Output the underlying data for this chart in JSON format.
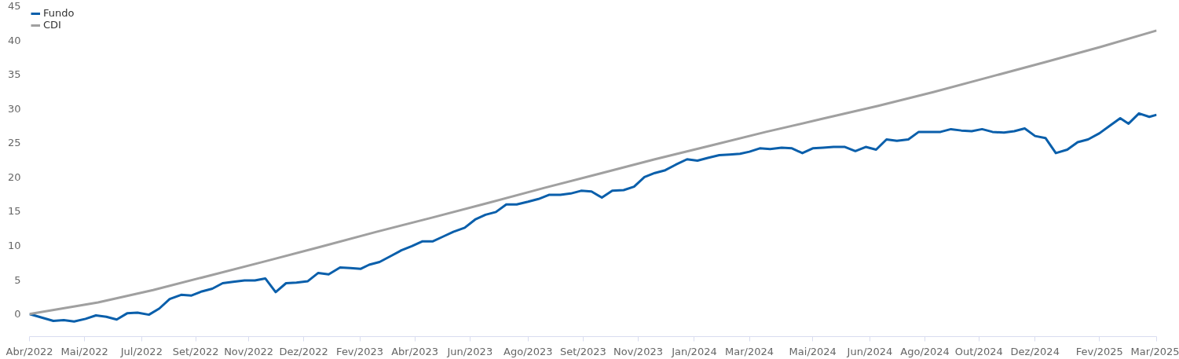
{
  "chart_data": {
    "type": "line",
    "xlim": [
      "2022-04-08",
      "2025-03-28"
    ],
    "ylim": [
      -3.3,
      45
    ],
    "yticks": [
      0,
      5,
      10,
      15,
      20,
      25,
      30,
      35,
      40,
      45
    ],
    "xticks": [
      {
        "value": "2022-04-08",
        "label": "Abr/2022"
      },
      {
        "value": "2022-05-31",
        "label": "Mai/2022"
      },
      {
        "value": "2022-07-25",
        "label": "Jul/2022"
      },
      {
        "value": "2022-09-15",
        "label": "Set/2022"
      },
      {
        "value": "2022-11-05",
        "label": "Nov/2022"
      },
      {
        "value": "2022-12-28",
        "label": "Dez/2022"
      },
      {
        "value": "2023-02-20",
        "label": "Fev/2023"
      },
      {
        "value": "2023-04-14",
        "label": "Abr/2023"
      },
      {
        "value": "2023-06-06",
        "label": "Jun/2023"
      },
      {
        "value": "2023-08-01",
        "label": "Ago/2023"
      },
      {
        "value": "2023-09-23",
        "label": "Set/2023"
      },
      {
        "value": "2023-11-15",
        "label": "Nov/2023"
      },
      {
        "value": "2024-01-08",
        "label": "Jan/2024"
      },
      {
        "value": "2024-03-01",
        "label": "Mar/2024"
      },
      {
        "value": "2024-05-01",
        "label": "Mai/2024"
      },
      {
        "value": "2024-06-25",
        "label": "Jun/2024"
      },
      {
        "value": "2024-08-17",
        "label": "Ago/2024"
      },
      {
        "value": "2024-10-08",
        "label": "Out/2024"
      },
      {
        "value": "2024-12-01",
        "label": "Dez/2024"
      },
      {
        "value": "2025-02-01",
        "label": "Fev/2025"
      },
      {
        "value": "2025-03-28",
        "label": "Mar/2025"
      }
    ],
    "grid": false,
    "legend": "top left",
    "marker": "none",
    "line_style": "solid",
    "series": [
      {
        "name": "Fundo",
        "color": "#0a5fab",
        "x": [
          "2022-04-08",
          "2022-05-01",
          "2022-05-11",
          "2022-05-21",
          "2022-06-01",
          "2022-06-11",
          "2022-06-21",
          "2022-07-01",
          "2022-07-11",
          "2022-07-21",
          "2022-08-01",
          "2022-08-11",
          "2022-08-21",
          "2022-09-01",
          "2022-09-11",
          "2022-09-21",
          "2022-10-01",
          "2022-10-11",
          "2022-10-21",
          "2022-11-01",
          "2022-11-11",
          "2022-11-21",
          "2022-12-01",
          "2022-12-11",
          "2022-12-21",
          "2023-01-01",
          "2023-01-11",
          "2023-01-21",
          "2023-02-01",
          "2023-02-11",
          "2023-02-21",
          "2023-03-01",
          "2023-03-11",
          "2023-03-21",
          "2023-04-01",
          "2023-04-11",
          "2023-04-21",
          "2023-05-01",
          "2023-05-11",
          "2023-05-21",
          "2023-06-01",
          "2023-06-11",
          "2023-06-21",
          "2023-07-01",
          "2023-07-11",
          "2023-07-21",
          "2023-08-01",
          "2023-08-11",
          "2023-08-21",
          "2023-09-01",
          "2023-09-11",
          "2023-09-21",
          "2023-10-01",
          "2023-10-11",
          "2023-10-21",
          "2023-11-01",
          "2023-11-11",
          "2023-11-21",
          "2023-12-01",
          "2023-12-11",
          "2023-12-21",
          "2024-01-01",
          "2024-01-11",
          "2024-01-21",
          "2024-02-01",
          "2024-02-11",
          "2024-02-21",
          "2024-03-01",
          "2024-03-11",
          "2024-03-21",
          "2024-04-01",
          "2024-04-11",
          "2024-04-21",
          "2024-05-01",
          "2024-05-11",
          "2024-05-21",
          "2024-06-01",
          "2024-06-11",
          "2024-06-21",
          "2024-07-01",
          "2024-07-11",
          "2024-07-21",
          "2024-08-01",
          "2024-08-11",
          "2024-08-21",
          "2024-09-01",
          "2024-09-11",
          "2024-09-21",
          "2024-10-01",
          "2024-10-11",
          "2024-10-21",
          "2024-11-01",
          "2024-11-11",
          "2024-11-21",
          "2024-12-01",
          "2024-12-11",
          "2024-12-21",
          "2025-01-01",
          "2025-01-11",
          "2025-01-21",
          "2025-02-01",
          "2025-02-11",
          "2025-02-21",
          "2025-03-01",
          "2025-03-11",
          "2025-03-21",
          "2025-03-28"
        ],
        "values": [
          0,
          -1.0,
          -0.9,
          -1.1,
          -0.7,
          -0.2,
          -0.4,
          -0.8,
          0.1,
          0.2,
          -0.1,
          0.8,
          2.2,
          2.8,
          2.7,
          3.3,
          3.7,
          4.5,
          4.7,
          4.9,
          4.9,
          5.2,
          3.2,
          4.5,
          4.6,
          4.8,
          6.0,
          5.8,
          6.8,
          6.7,
          6.6,
          7.2,
          7.6,
          8.4,
          9.3,
          9.9,
          10.6,
          10.6,
          11.3,
          12.0,
          12.6,
          13.8,
          14.5,
          14.9,
          16.0,
          16.0,
          16.4,
          16.8,
          17.4,
          17.4,
          17.6,
          18.0,
          17.9,
          17.0,
          18.0,
          18.1,
          18.6,
          20.0,
          20.6,
          21.0,
          21.8,
          22.6,
          22.4,
          22.8,
          23.2,
          23.3,
          23.4,
          23.7,
          24.2,
          24.1,
          24.3,
          24.2,
          23.5,
          24.2,
          24.3,
          24.4,
          24.4,
          23.8,
          24.4,
          24.0,
          25.5,
          25.3,
          25.5,
          26.6,
          26.6,
          26.6,
          27.0,
          26.8,
          26.7,
          27.0,
          26.6,
          26.5,
          26.7,
          27.1,
          26.0,
          25.7,
          23.5,
          24.0,
          25.1,
          25.5,
          26.4,
          27.5,
          28.6,
          27.8,
          29.3,
          28.8,
          29.1
        ]
      },
      {
        "name": "CDI",
        "color": "#a0a0a0",
        "x": [
          "2022-04-08",
          "2022-06-13",
          "2022-08-05",
          "2022-09-28",
          "2022-11-21",
          "2023-01-13",
          "2023-03-08",
          "2023-05-01",
          "2023-06-23",
          "2023-08-16",
          "2023-10-09",
          "2023-12-01",
          "2024-01-24",
          "2024-03-17",
          "2024-05-10",
          "2024-07-03",
          "2024-08-25",
          "2024-10-18",
          "2024-12-11",
          "2025-02-02",
          "2025-03-28"
        ],
        "values": [
          0,
          1.7,
          3.5,
          5.6,
          7.7,
          9.8,
          12.0,
          14.1,
          16.2,
          18.4,
          20.5,
          22.6,
          24.6,
          26.6,
          28.5,
          30.4,
          32.4,
          34.6,
          36.8,
          39.0,
          41.4
        ]
      }
    ]
  }
}
